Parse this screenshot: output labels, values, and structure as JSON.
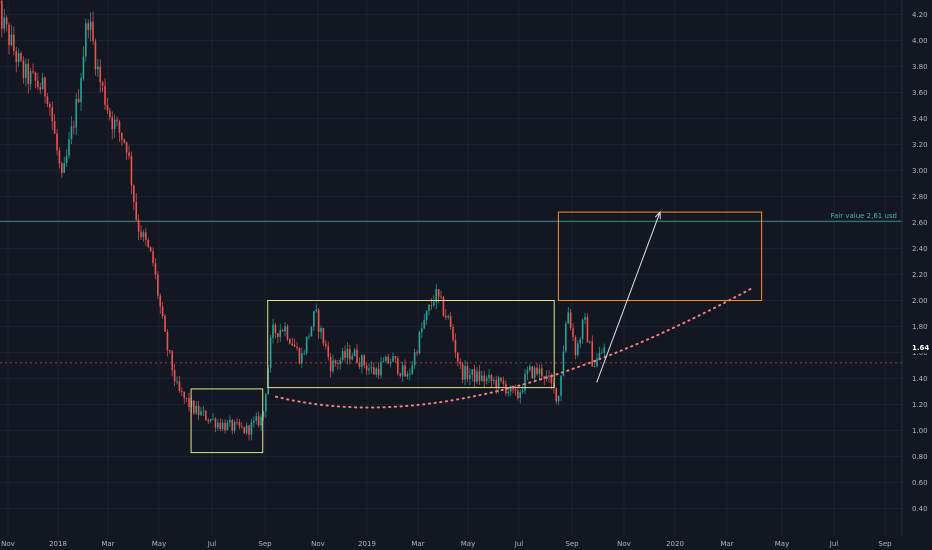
{
  "chart_data": {
    "type": "candlestick",
    "x_ticks": [
      "Nov",
      "2018",
      "Mar",
      "May",
      "Jul",
      "Sep",
      "Nov",
      "2019",
      "Mar",
      "May",
      "Jul",
      "Sep",
      "Nov",
      "2020",
      "Mar",
      "May",
      "Jul",
      "Sep"
    ],
    "y_ticks": [
      "4.20",
      "4.00",
      "3.80",
      "3.60",
      "3.40",
      "3.20",
      "3.00",
      "2.80",
      "2.60",
      "2.40",
      "2.20",
      "2.00",
      "1.80",
      "1.60",
      "1.40",
      "1.20",
      "1.00",
      "0.80",
      "0.60",
      "0.40"
    ],
    "ylim": [
      0.3,
      4.3
    ],
    "last_price": 1.64,
    "last_price_label": "1.64",
    "fair_value": 2.61,
    "fair_value_label": "Fair value 2,61 usd",
    "price_path": [
      [
        "2017-10-15",
        4.25
      ],
      [
        "2017-11-15",
        3.75
      ],
      [
        "2017-12-15",
        3.6
      ],
      [
        "2018-01-01",
        2.9
      ],
      [
        "2018-01-20",
        3.55
      ],
      [
        "2018-02-01",
        4.2
      ],
      [
        "2018-02-15",
        3.7
      ],
      [
        "2018-03-01",
        3.4
      ],
      [
        "2018-03-20",
        3.2
      ],
      [
        "2018-04-01",
        2.6
      ],
      [
        "2018-04-20",
        2.3
      ],
      [
        "2018-05-05",
        1.7
      ],
      [
        "2018-05-20",
        1.3
      ],
      [
        "2018-06-10",
        1.15
      ],
      [
        "2018-07-10",
        1.05
      ],
      [
        "2018-08-10",
        1.0
      ],
      [
        "2018-08-30",
        1.1
      ],
      [
        "2018-09-10",
        1.75
      ],
      [
        "2018-09-25",
        1.8
      ],
      [
        "2018-10-15",
        1.55
      ],
      [
        "2018-11-01",
        1.9
      ],
      [
        "2018-11-20",
        1.5
      ],
      [
        "2018-12-15",
        1.6
      ],
      [
        "2019-01-10",
        1.45
      ],
      [
        "2019-02-01",
        1.55
      ],
      [
        "2019-02-20",
        1.4
      ],
      [
        "2019-03-10",
        1.8
      ],
      [
        "2019-03-25",
        2.05
      ],
      [
        "2019-04-10",
        1.85
      ],
      [
        "2019-04-25",
        1.45
      ],
      [
        "2019-05-20",
        1.4
      ],
      [
        "2019-06-15",
        1.35
      ],
      [
        "2019-07-01",
        1.25
      ],
      [
        "2019-07-15",
        1.45
      ],
      [
        "2019-08-01",
        1.45
      ],
      [
        "2019-08-20",
        1.25
      ],
      [
        "2019-08-31",
        1.95
      ],
      [
        "2019-09-10",
        1.6
      ],
      [
        "2019-09-20",
        1.85
      ],
      [
        "2019-10-01",
        1.5
      ],
      [
        "2019-10-15",
        1.64
      ]
    ],
    "annotations": {
      "boxes": [
        {
          "x0": "2018-06-05",
          "x1": "2018-08-30",
          "y0": 0.83,
          "y1": 1.32,
          "color": "#e6e08a"
        },
        {
          "x0": "2018-09-05",
          "x1": "2019-08-15",
          "y0": 1.33,
          "y1": 2.0,
          "color": "#e6e08a"
        },
        {
          "x0": "2019-08-20",
          "x1": "2020-04-20",
          "y0": 2.0,
          "y1": 2.68,
          "color": "#ff8c2a"
        }
      ],
      "arrow": {
        "x0": "2019-10-05",
        "y0": 1.37,
        "x1": "2019-12-20",
        "y1": 2.68,
        "color": "#e0e3eb"
      },
      "curve": {
        "start": [
          "2018-09-15",
          1.26
        ],
        "control": [
          "2019-05-01",
          0.9
        ],
        "end": [
          "2020-04-10",
          2.1
        ],
        "color": "#f07f7f"
      }
    },
    "colors": {
      "up": "#26a69a",
      "down": "#ef5350",
      "background": "#131722",
      "fair_value_line": "#3b8c80",
      "last_price_line": "#ef5350"
    }
  }
}
